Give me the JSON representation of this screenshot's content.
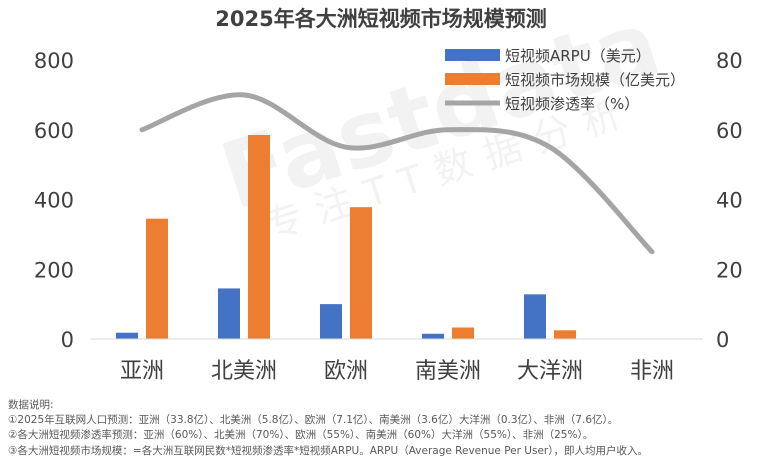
{
  "chart_data": {
    "type": "bar",
    "title": "2025年各大洲短视频市场规模预测",
    "categories": [
      "亚洲",
      "北美洲",
      "欧洲",
      "南美洲",
      "大洋洲",
      "非洲"
    ],
    "left_axis": {
      "ylim": [
        0,
        800
      ],
      "ticks": [
        "0",
        "200",
        "400",
        "600",
        "800"
      ]
    },
    "right_axis": {
      "ylim": [
        0,
        80
      ],
      "ticks": [
        "0",
        "20",
        "40",
        "60",
        "80"
      ]
    },
    "series": [
      {
        "name": "短视频ARPU（美元）",
        "type": "bar",
        "axis": "left",
        "color": "#4472C4",
        "values": [
          18,
          145,
          100,
          15,
          128,
          0
        ]
      },
      {
        "name": "短视频市场规模（亿美元）",
        "type": "bar",
        "axis": "left",
        "color": "#ED7D31",
        "values": [
          345,
          585,
          378,
          33,
          25,
          0
        ]
      },
      {
        "name": "短视频渗透率（%）",
        "type": "line",
        "axis": "right",
        "color": "#A5A5A5",
        "values": [
          60,
          70,
          55,
          60,
          55,
          25
        ]
      }
    ],
    "legend_position": "top-right",
    "grid": false
  },
  "watermark": {
    "brand": "Fastdata",
    "tagline": "专注TT数据分析"
  },
  "notes": {
    "header": "数据说明:",
    "line1": "①2025年互联网人口预测：亚洲（33.8亿）、北美洲（5.8亿）、欧洲（7.1亿）、南美洲（3.6亿）大洋洲（0.3亿）、非洲（7.6亿）。",
    "line2": "②各大洲短视频渗透率预测：亚洲（60%）、北美洲（70%）、欧洲（55%）、南美洲（60%）大洋洲（55%）、非洲（25%）。",
    "line3": "③各大洲短视频市场规模：=各大洲互联网民数*短视频渗透率*短视频ARPU。ARPU（Average Revenue Per User），即人均用户收入。"
  }
}
